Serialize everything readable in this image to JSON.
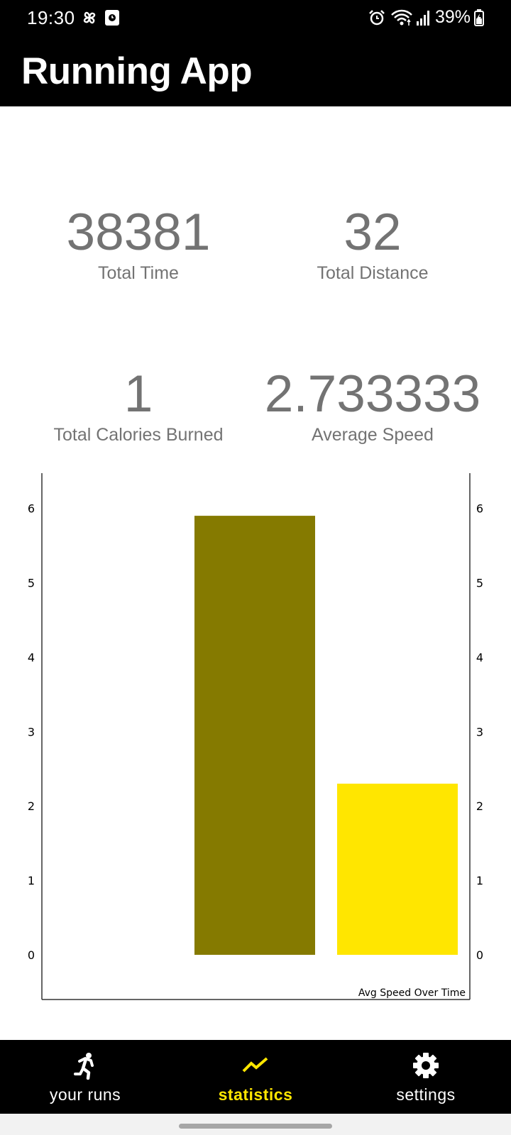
{
  "status_bar": {
    "time": "19:30",
    "battery": "39%",
    "icons": [
      "pinwheel-icon",
      "screenshot-icon",
      "alarm-icon",
      "wifi-icon",
      "signal-icon",
      "battery-icon"
    ]
  },
  "app_bar": {
    "title": "Running App"
  },
  "stats": {
    "total_time": {
      "value": "38381",
      "label": "Total Time"
    },
    "total_distance": {
      "value": "32",
      "label": "Total Distance"
    },
    "total_calories": {
      "value": "1",
      "label": "Total Calories Burned"
    },
    "average_speed": {
      "value": "2.733333",
      "label": "Average Speed"
    },
    "value_color": "#737373"
  },
  "chart_data": {
    "type": "bar",
    "description": "Avg Speed Over Time",
    "values": [
      5.9,
      2.3
    ],
    "colors": [
      "#857a00",
      "#ffe600"
    ],
    "ylim": [
      0,
      6
    ],
    "yticks": [
      "0",
      "1",
      "2",
      "3",
      "4",
      "5",
      "6"
    ],
    "y_axes": [
      "left",
      "right"
    ]
  },
  "bottom_nav": {
    "items": [
      {
        "label": "your runs",
        "icon": "running-person-icon",
        "active": false
      },
      {
        "label": "statistics",
        "icon": "trending-line-icon",
        "active": true
      },
      {
        "label": "settings",
        "icon": "gear-icon",
        "active": false
      }
    ],
    "active_color": "#ffe600"
  }
}
